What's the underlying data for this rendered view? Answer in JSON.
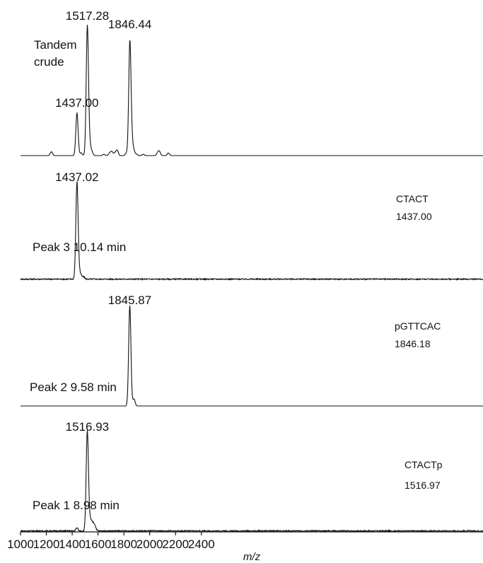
{
  "chart_data": {
    "type": "line",
    "xlabel": "m/z",
    "xlim": [
      1000,
      2460
    ],
    "x_ticks": [
      1000,
      1200,
      1400,
      1600,
      1800,
      2000,
      2200,
      2400
    ],
    "panels": [
      {
        "label_lines": [
          "Tandem",
          "crude"
        ],
        "info_lines": [],
        "noise": 0.0,
        "peak_labels": [
          {
            "x": 1437.0,
            "text": "1437.00"
          },
          {
            "x": 1517.28,
            "text": "1517.28"
          },
          {
            "x": 1846.44,
            "text": "1846.44"
          }
        ],
        "peaks": [
          [
            1239,
            0.03
          ],
          [
            1437.0,
            0.33
          ],
          [
            1469,
            0.02
          ],
          [
            1517.28,
            1.0
          ],
          [
            1535,
            0.08
          ],
          [
            1552,
            0.03
          ],
          [
            1645,
            0.01
          ],
          [
            1690,
            0.02
          ],
          [
            1707,
            0.03
          ],
          [
            1731,
            0.02
          ],
          [
            1748,
            0.04
          ],
          [
            1820,
            0.02
          ],
          [
            1846.44,
            0.88
          ],
          [
            1863,
            0.09
          ],
          [
            1878,
            0.03
          ],
          [
            1898,
            0.01
          ],
          [
            1950,
            0.01
          ],
          [
            2062,
            0.02
          ],
          [
            2075,
            0.03
          ],
          [
            2145,
            0.02
          ]
        ]
      },
      {
        "label_lines": [
          "Peak 3 10.14 min"
        ],
        "info_lines": [
          "CTACT",
          "1437.00"
        ],
        "noise": 0.012,
        "peak_labels": [
          {
            "x": 1437.02,
            "text": "1437.02"
          }
        ],
        "peaks": [
          [
            1437.02,
            1.0
          ],
          [
            1455,
            0.06
          ],
          [
            1470,
            0.03
          ],
          [
            1490,
            0.02
          ]
        ]
      },
      {
        "label_lines": [
          "Peak 2 9.58 min"
        ],
        "info_lines": [
          "pGTTCAC",
          "1846.18"
        ],
        "noise": 0.0,
        "peak_labels": [
          {
            "x": 1845.87,
            "text": "1845.87"
          }
        ],
        "peaks": [
          [
            1845.87,
            1.0
          ],
          [
            1878,
            0.07
          ]
        ]
      },
      {
        "label_lines": [
          "Peak 1 8.98 min"
        ],
        "info_lines": [
          "CTACTp",
          "1516.97"
        ],
        "noise": 0.012,
        "peak_labels": [
          {
            "x": 1516.93,
            "text": "1516.93"
          }
        ],
        "peaks": [
          [
            1437,
            0.03
          ],
          [
            1516.93,
            1.0
          ],
          [
            1535,
            0.1
          ],
          [
            1552,
            0.08
          ],
          [
            1568,
            0.05
          ],
          [
            1578,
            0.03
          ]
        ]
      }
    ]
  }
}
